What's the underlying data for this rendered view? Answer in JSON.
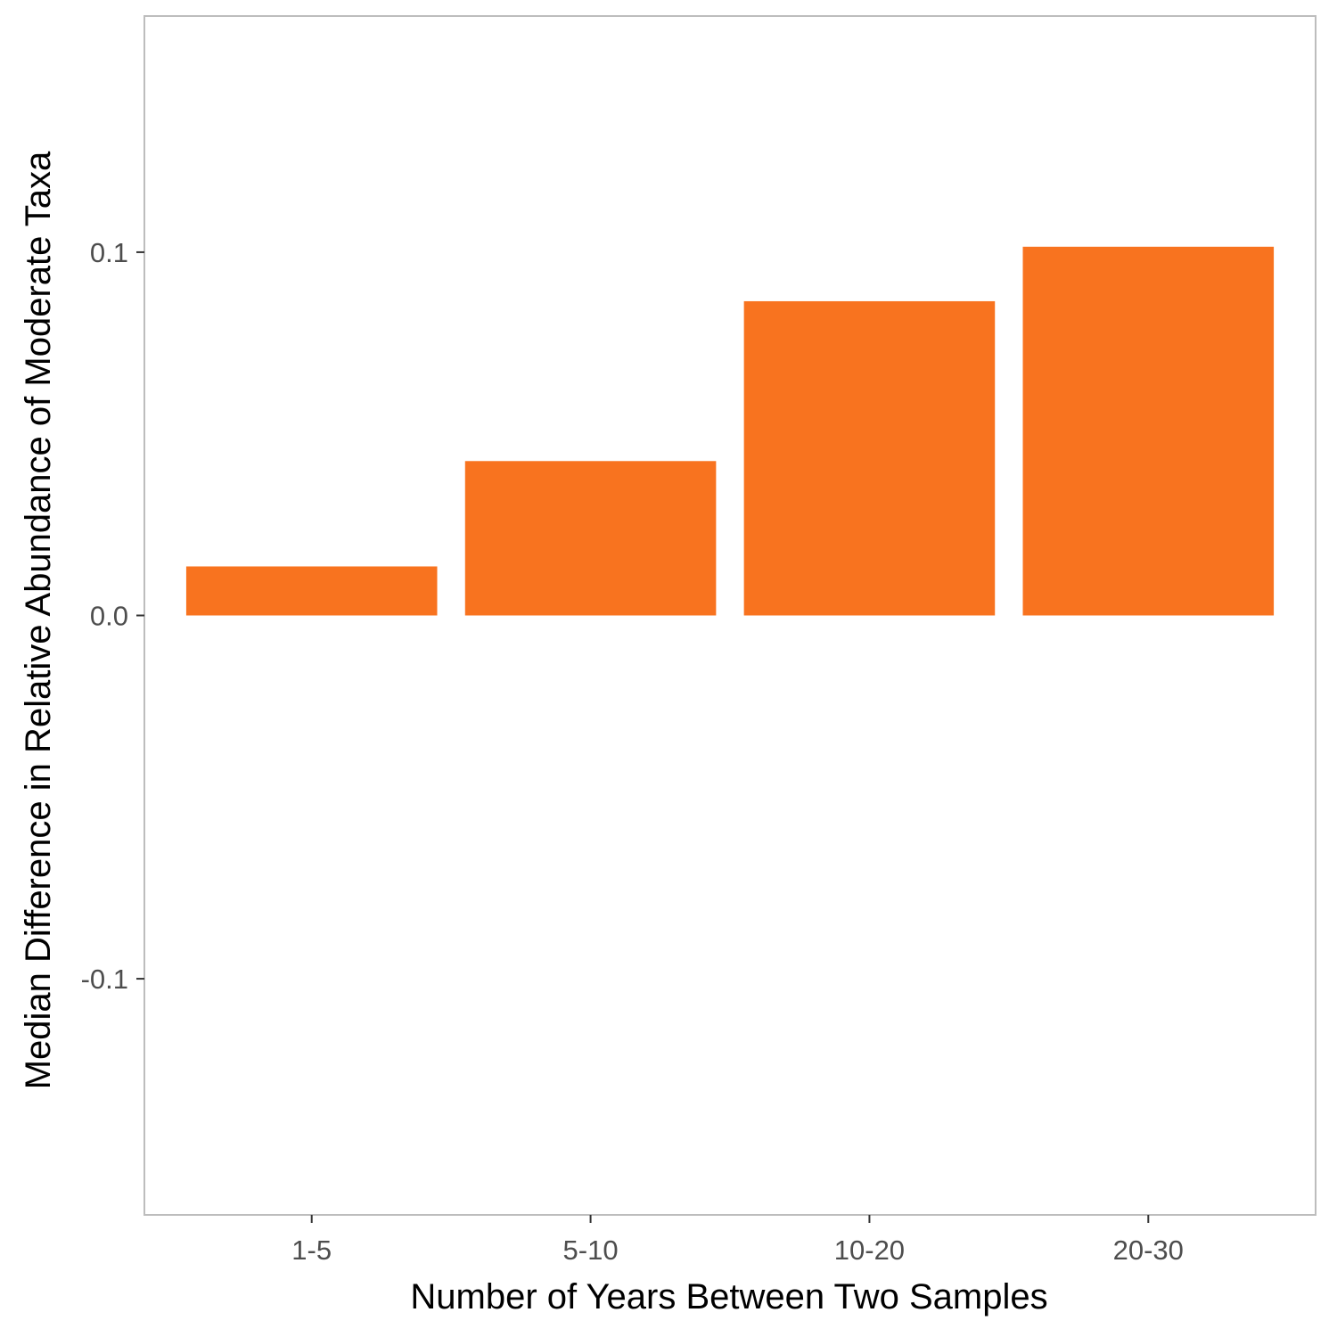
{
  "chart_data": {
    "type": "bar",
    "title": "",
    "xlabel": "Number of Years Between Two Samples",
    "ylabel": "Median Difference in Relative Abundance of Moderate Taxa",
    "categories": [
      "1-5",
      "5-10",
      "10-20",
      "20-30"
    ],
    "values": [
      0.0135,
      0.0425,
      0.0865,
      0.1015
    ],
    "ylim": [
      -0.165,
      0.165
    ],
    "yticks": [
      -0.1,
      0.0,
      0.1
    ],
    "ytick_labels": [
      "-0.1",
      "0.0",
      "0.1"
    ],
    "grid": false,
    "legend": "none",
    "bar_color": "#F8731F",
    "panel_border_color": "#BDBDBD"
  }
}
